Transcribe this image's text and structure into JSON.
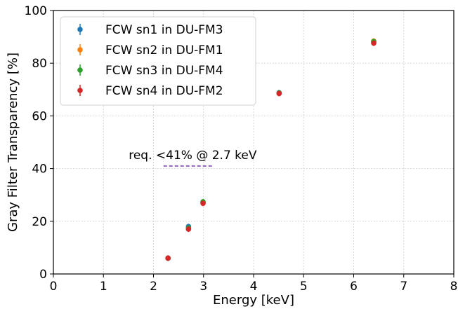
{
  "chart_data": {
    "type": "scatter",
    "title": "",
    "xlabel": "Energy [keV]",
    "ylabel": "Gray Filter Transparency [%]",
    "xlim": [
      0,
      8
    ],
    "ylim": [
      0,
      100
    ],
    "xticks": [
      0,
      1,
      2,
      3,
      4,
      5,
      6,
      7,
      8
    ],
    "yticks": [
      0,
      20,
      40,
      60,
      80,
      100
    ],
    "grid": true,
    "legend_position": "upper-left",
    "series": [
      {
        "name": "FCW sn1 in DU-FM3",
        "color": "#1f77b4",
        "x": [
          2.29,
          2.7,
          2.99,
          4.51,
          6.4
        ],
        "y": [
          6.0,
          18.0,
          27.2,
          68.8,
          88.0
        ]
      },
      {
        "name": "FCW sn2 in DU-FM1",
        "color": "#ff7f0e",
        "x": [
          2.29,
          2.7,
          2.99,
          4.51,
          6.4
        ],
        "y": [
          6.0,
          17.2,
          27.0,
          68.6,
          88.4
        ]
      },
      {
        "name": "FCW sn3 in DU-FM4",
        "color": "#2ca02c",
        "x": [
          2.29,
          2.7,
          2.99,
          4.51,
          6.4
        ],
        "y": [
          6.0,
          17.4,
          27.4,
          68.7,
          88.2
        ]
      },
      {
        "name": "FCW sn4 in DU-FM2",
        "color": "#d62728",
        "x": [
          2.29,
          2.7,
          2.99,
          4.51,
          6.4
        ],
        "y": [
          6.0,
          17.0,
          26.8,
          68.5,
          87.6
        ]
      }
    ],
    "annotations": [
      {
        "text": "req. <41% @ 2.7 keV",
        "line_x": [
          2.2,
          3.2
        ],
        "line_y": 41,
        "line_color": "#9467bd",
        "line_style": "dashed"
      }
    ]
  }
}
